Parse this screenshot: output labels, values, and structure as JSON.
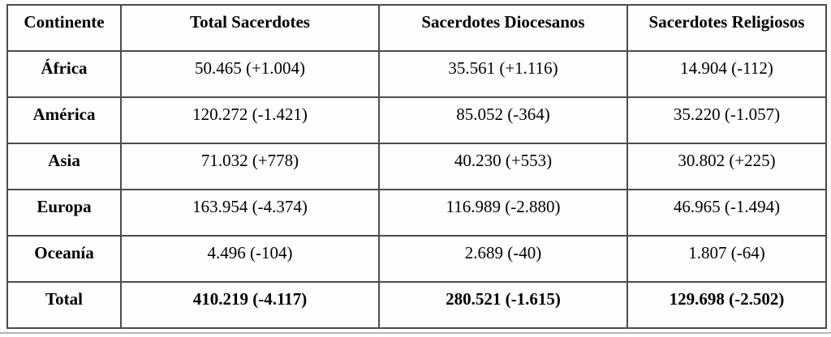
{
  "table": {
    "header": [
      "Continente",
      "Total Sacerdotes",
      "Sacerdotes Diocesanos",
      "Sacerdotes Religiosos"
    ],
    "rows": [
      [
        "África",
        "50.465 (+1.004)",
        "35.561 (+1.116)",
        "14.904 (-112)"
      ],
      [
        "América",
        "120.272 (-1.421)",
        "85.052 (-364)",
        "35.220 (-1.057)"
      ],
      [
        "Asia",
        "71.032 (+778)",
        "40.230 (+553)",
        "30.802 (+225)"
      ],
      [
        "Europa",
        "163.954 (-4.374)",
        "116.989 (-2.880)",
        "46.965 (-1.494)"
      ],
      [
        "Oceanía",
        "4.496 (-104)",
        "2.689 (-40)",
        "1.807 (-64)"
      ],
      [
        "Total",
        "410.219 (-4.117)",
        "280.521 (-1.615)",
        "129.698 (-2.502)"
      ]
    ]
  },
  "colors": {
    "table_border": "#4c4c4c",
    "bottom_rule": "#b5b5b5",
    "text": "#000000",
    "background": "#ffffff"
  }
}
